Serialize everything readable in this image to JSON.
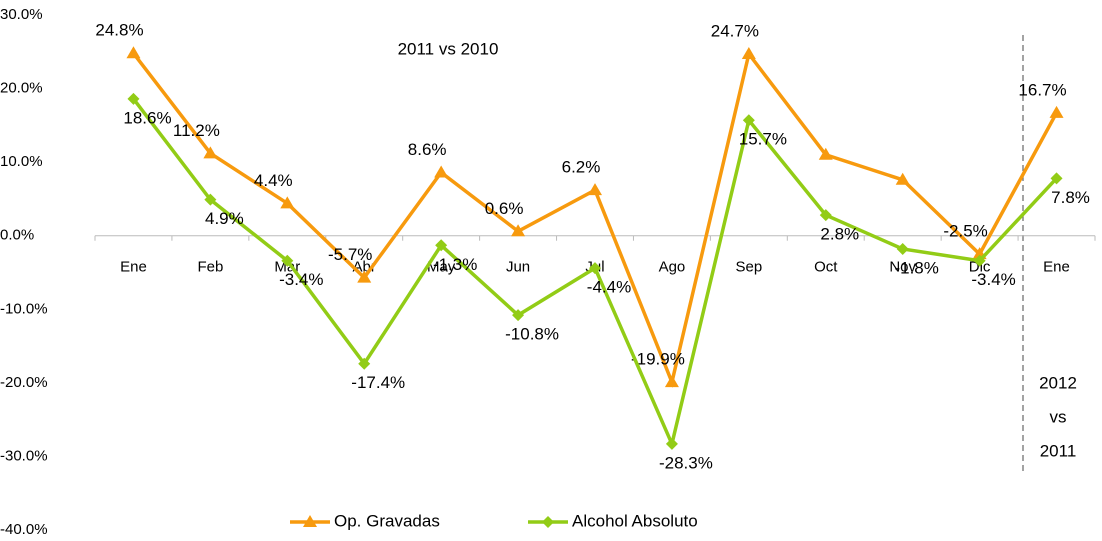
{
  "chart_data": {
    "type": "line",
    "annotations": [
      "2011 vs 2010",
      [
        "2012",
        "vs",
        "2011"
      ]
    ],
    "categories": [
      "Ene",
      "Feb",
      "Mar",
      "Abr",
      "May",
      "Jun",
      "Jul",
      "Ago",
      "Sep",
      "Oct",
      "Nov",
      "Dic",
      "Ene"
    ],
    "series": [
      {
        "name": "Op. Gravadas",
        "color": "#f79a0e",
        "values": [
          24.8,
          11.2,
          4.4,
          -5.7,
          8.6,
          0.6,
          6.2,
          -19.9,
          24.7,
          11.0,
          7.6,
          -2.5,
          16.7
        ],
        "value_labels": [
          "24.8%",
          "11.2%",
          "4.4%",
          "-5.7%",
          "8.6%",
          "0.6%",
          "6.2%",
          "-19.9%",
          "24.7%",
          null,
          null,
          "-2.5%",
          "16.7%"
        ]
      },
      {
        "name": "Alcohol Absoluto",
        "color": "#92cc16",
        "values": [
          18.6,
          4.9,
          -3.4,
          -17.4,
          -1.3,
          -10.8,
          -4.4,
          -28.3,
          15.7,
          2.8,
          -1.8,
          -3.4,
          7.8
        ],
        "value_labels": [
          "18.6%",
          "4.9%",
          "-3.4%",
          "-17.4%",
          "-1.3%",
          "-10.8%",
          "-4.4%",
          "-28.3%",
          "15.7%",
          "2.8%",
          "-1.8%",
          "-3.4%",
          "7.8%"
        ]
      }
    ],
    "ylim": [
      -40,
      30
    ],
    "yticks": [
      {
        "value": -40,
        "label": "-40.0%"
      },
      {
        "value": -30,
        "label": "-30.0%"
      },
      {
        "value": -20,
        "label": "-20.0%"
      },
      {
        "value": -10,
        "label": "-10.0%"
      },
      {
        "value": 0,
        "label": "0.0%"
      },
      {
        "value": 10,
        "label": "10.0%"
      },
      {
        "value": 20,
        "label": "20.0%"
      },
      {
        "value": 30,
        "label": "30.0%"
      }
    ],
    "legend": "bottom"
  }
}
